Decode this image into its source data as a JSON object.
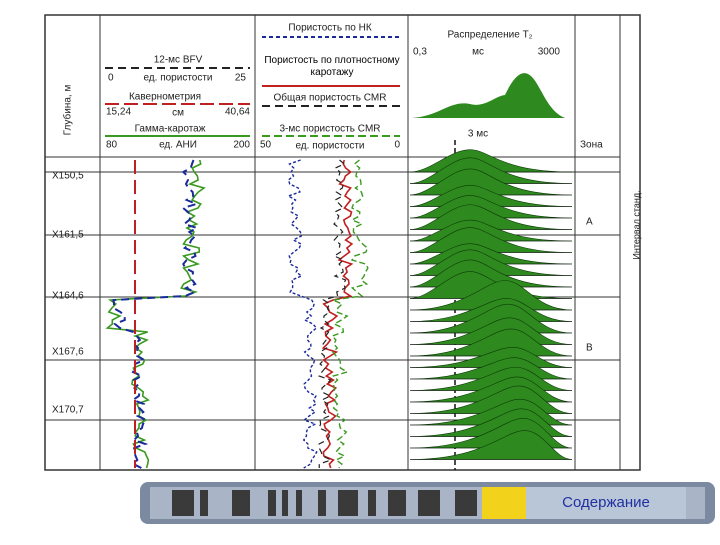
{
  "header": {
    "depth_axis": "Глубина, м",
    "track1": {
      "bfv": "12-мс BFV",
      "bfv_min": "0",
      "bfv_unit": "ед. пористости",
      "bfv_max": "25",
      "caliper": "Кавернометрия",
      "caliper_min": "15,24",
      "caliper_unit": "см",
      "caliper_max": "40,64",
      "gamma": "Гамма-каротаж",
      "gamma_min": "80",
      "gamma_unit": "ед. АНИ",
      "gamma_max": "200"
    },
    "track2": {
      "nphi": "Пористость по НК",
      "dphi": "Пористость по плотностному каротажу",
      "cmr_total": "Общая пористость CMR",
      "cmr_3ms": "3-мс пористость CMR",
      "min": "50",
      "unit": "ед. пористости",
      "max": "0"
    },
    "track3": {
      "title": "Распределение T₂",
      "min": "0,3",
      "unit": "мс",
      "max": "3000",
      "cutoff": "3 мс"
    },
    "track4": {
      "title": "Зона",
      "zone_a": "A",
      "zone_b": "B",
      "side": "Интервал станд."
    }
  },
  "depths": [
    "X150,5",
    "X161,5",
    "X164,6",
    "X167,6",
    "X170,7"
  ],
  "nav": {
    "button": "Содержание"
  }
}
